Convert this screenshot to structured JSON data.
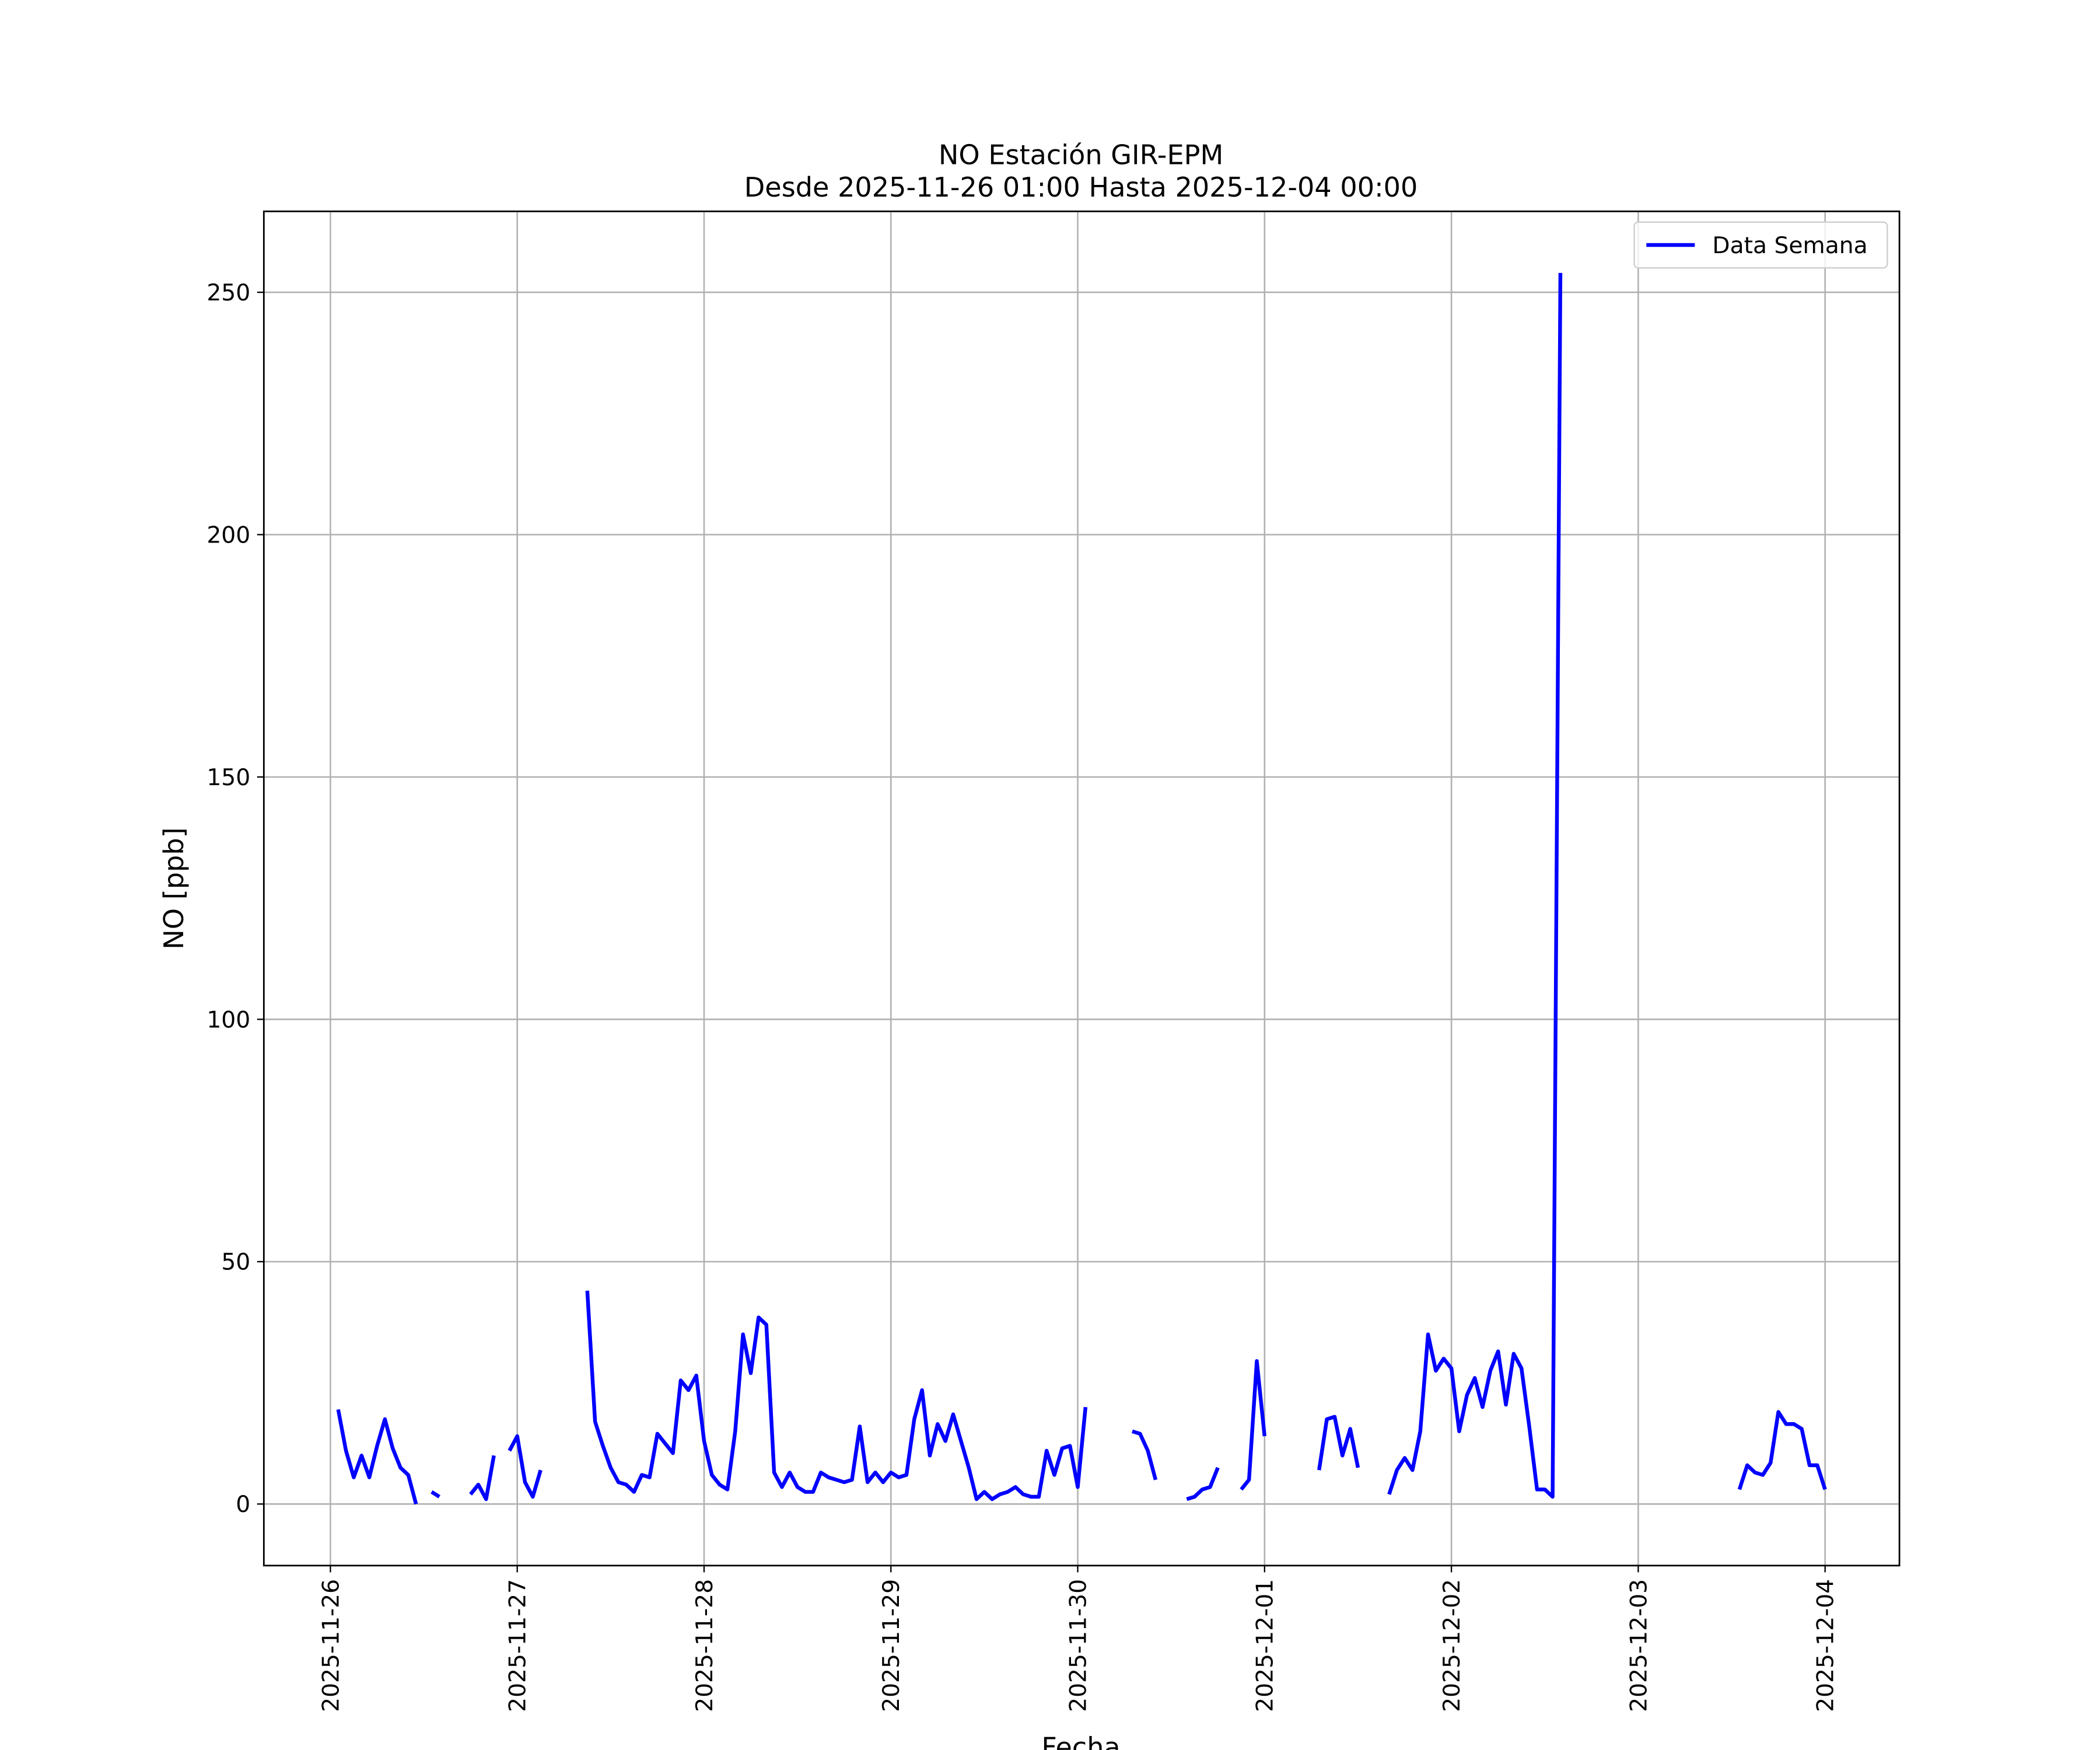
{
  "chart_data": {
    "type": "line",
    "title": "NO Estación GIR-EPM",
    "subtitle": "Desde 2025-11-26 01:00 Hasta 2025-12-04 00:00",
    "x_label": "Fecha",
    "y_label": "NO [ppb]",
    "x": [
      "2025-11-26 01:00",
      "2025-11-26 02:00",
      "2025-11-26 03:00",
      "2025-11-26 04:00",
      "2025-11-26 05:00",
      "2025-11-26 06:00",
      "2025-11-26 07:00",
      "2025-11-26 08:00",
      "2025-11-26 09:00",
      "2025-11-26 10:00",
      "2025-11-26 11:00",
      "2025-11-26 12:00",
      "2025-11-26 13:00",
      "2025-11-26 14:00",
      "2025-11-26 15:00",
      "2025-11-26 16:00",
      "2025-11-26 17:00",
      "2025-11-26 18:00",
      "2025-11-26 19:00",
      "2025-11-26 20:00",
      "2025-11-26 21:00",
      "2025-11-26 22:00",
      "2025-11-26 23:00",
      "2025-11-27 00:00",
      "2025-11-27 01:00",
      "2025-11-27 02:00",
      "2025-11-27 03:00",
      "2025-11-27 04:00",
      "2025-11-27 05:00",
      "2025-11-27 06:00",
      "2025-11-27 07:00",
      "2025-11-27 08:00",
      "2025-11-27 09:00",
      "2025-11-27 10:00",
      "2025-11-27 11:00",
      "2025-11-27 12:00",
      "2025-11-27 13:00",
      "2025-11-27 14:00",
      "2025-11-27 15:00",
      "2025-11-27 16:00",
      "2025-11-27 17:00",
      "2025-11-27 18:00",
      "2025-11-27 19:00",
      "2025-11-27 20:00",
      "2025-11-27 21:00",
      "2025-11-27 22:00",
      "2025-11-27 23:00",
      "2025-11-28 00:00",
      "2025-11-28 01:00",
      "2025-11-28 02:00",
      "2025-11-28 03:00",
      "2025-11-28 04:00",
      "2025-11-28 05:00",
      "2025-11-28 06:00",
      "2025-11-28 07:00",
      "2025-11-28 08:00",
      "2025-11-28 09:00",
      "2025-11-28 10:00",
      "2025-11-28 11:00",
      "2025-11-28 12:00",
      "2025-11-28 13:00",
      "2025-11-28 14:00",
      "2025-11-28 15:00",
      "2025-11-28 16:00",
      "2025-11-28 17:00",
      "2025-11-28 18:00",
      "2025-11-28 19:00",
      "2025-11-28 20:00",
      "2025-11-28 21:00",
      "2025-11-28 22:00",
      "2025-11-28 23:00",
      "2025-11-29 00:00",
      "2025-11-29 01:00",
      "2025-11-29 02:00",
      "2025-11-29 03:00",
      "2025-11-29 04:00",
      "2025-11-29 05:00",
      "2025-11-29 06:00",
      "2025-11-29 07:00",
      "2025-11-29 08:00",
      "2025-11-29 09:00",
      "2025-11-29 10:00",
      "2025-11-29 11:00",
      "2025-11-29 12:00",
      "2025-11-29 13:00",
      "2025-11-29 14:00",
      "2025-11-29 15:00",
      "2025-11-29 16:00",
      "2025-11-29 17:00",
      "2025-11-29 18:00",
      "2025-11-29 19:00",
      "2025-11-29 20:00",
      "2025-11-29 21:00",
      "2025-11-29 22:00",
      "2025-11-29 23:00",
      "2025-11-30 00:00",
      "2025-11-30 01:00",
      "2025-11-30 02:00",
      "2025-11-30 03:00",
      "2025-11-30 04:00",
      "2025-11-30 05:00",
      "2025-11-30 06:00",
      "2025-11-30 07:00",
      "2025-11-30 08:00",
      "2025-11-30 09:00",
      "2025-11-30 10:00",
      "2025-11-30 11:00",
      "2025-11-30 12:00",
      "2025-11-30 13:00",
      "2025-11-30 14:00",
      "2025-11-30 15:00",
      "2025-11-30 16:00",
      "2025-11-30 17:00",
      "2025-11-30 18:00",
      "2025-11-30 19:00",
      "2025-11-30 20:00",
      "2025-11-30 21:00",
      "2025-11-30 22:00",
      "2025-11-30 23:00",
      "2025-12-01 00:00",
      "2025-12-01 01:00",
      "2025-12-01 02:00",
      "2025-12-01 03:00",
      "2025-12-01 04:00",
      "2025-12-01 05:00",
      "2025-12-01 06:00",
      "2025-12-01 07:00",
      "2025-12-01 08:00",
      "2025-12-01 09:00",
      "2025-12-01 10:00",
      "2025-12-01 11:00",
      "2025-12-01 12:00",
      "2025-12-01 13:00",
      "2025-12-01 14:00",
      "2025-12-01 15:00",
      "2025-12-01 16:00",
      "2025-12-01 17:00",
      "2025-12-01 18:00",
      "2025-12-01 19:00",
      "2025-12-01 20:00",
      "2025-12-01 21:00",
      "2025-12-01 22:00",
      "2025-12-01 23:00",
      "2025-12-02 00:00",
      "2025-12-02 01:00",
      "2025-12-02 02:00",
      "2025-12-02 03:00",
      "2025-12-02 04:00",
      "2025-12-02 05:00",
      "2025-12-02 06:00",
      "2025-12-02 07:00",
      "2025-12-02 08:00",
      "2025-12-02 09:00",
      "2025-12-02 10:00",
      "2025-12-02 11:00",
      "2025-12-02 12:00",
      "2025-12-02 13:00",
      "2025-12-02 14:00",
      "2025-12-02 15:00",
      "2025-12-02 16:00",
      "2025-12-02 17:00",
      "2025-12-02 18:00",
      "2025-12-02 19:00",
      "2025-12-02 20:00",
      "2025-12-02 21:00",
      "2025-12-02 22:00",
      "2025-12-02 23:00",
      "2025-12-03 00:00",
      "2025-12-03 01:00",
      "2025-12-03 02:00",
      "2025-12-03 03:00",
      "2025-12-03 04:00",
      "2025-12-03 05:00",
      "2025-12-03 06:00",
      "2025-12-03 07:00",
      "2025-12-03 08:00",
      "2025-12-03 09:00",
      "2025-12-03 10:00",
      "2025-12-03 11:00",
      "2025-12-03 12:00",
      "2025-12-03 13:00",
      "2025-12-03 14:00",
      "2025-12-03 15:00",
      "2025-12-03 16:00",
      "2025-12-03 17:00",
      "2025-12-03 18:00",
      "2025-12-03 19:00",
      "2025-12-03 20:00",
      "2025-12-03 21:00",
      "2025-12-03 22:00",
      "2025-12-03 23:00",
      "2025-12-04 00:00"
    ],
    "series": [
      {
        "name": "Data Semana",
        "color": "#0000ff",
        "values": [
          19.5,
          11,
          5.5,
          10,
          5.5,
          12,
          17.5,
          11.5,
          7.5,
          6,
          0,
          null,
          2.5,
          1.5,
          null,
          null,
          null,
          2,
          4,
          1,
          10,
          null,
          11,
          14,
          4.5,
          1.5,
          7,
          null,
          null,
          null,
          null,
          null,
          44,
          17,
          12,
          7.5,
          4.5,
          4,
          2.5,
          6,
          5.5,
          14.5,
          12.5,
          10.5,
          25.5,
          23.5,
          26.5,
          13,
          6,
          4,
          3,
          15,
          35,
          27,
          38.5,
          37,
          6.5,
          3.5,
          6.5,
          3.5,
          2.5,
          2.5,
          6.5,
          5.5,
          5,
          4.5,
          5,
          16,
          4.5,
          6.5,
          4.5,
          6.5,
          5.5,
          6,
          17.5,
          23.5,
          10,
          16.5,
          13,
          18.5,
          13,
          7.5,
          1,
          2.5,
          1,
          2,
          2.5,
          3.5,
          2,
          1.5,
          1.5,
          11,
          6,
          11.5,
          12,
          3.5,
          20,
          null,
          null,
          null,
          null,
          null,
          15,
          14.5,
          11,
          5,
          null,
          null,
          null,
          1,
          1.5,
          3,
          3.5,
          7.5,
          null,
          null,
          3,
          5,
          29.5,
          14,
          null,
          null,
          null,
          null,
          null,
          null,
          7,
          17.5,
          18,
          10,
          15.5,
          7.5,
          null,
          null,
          null,
          2,
          7,
          9.5,
          7,
          15,
          35,
          27.5,
          30,
          28,
          15,
          22.5,
          26,
          20,
          27.5,
          31.5,
          20.5,
          31,
          28,
          16,
          3,
          3,
          1.5,
          254,
          null,
          null,
          null,
          null,
          null,
          null,
          null,
          null,
          null,
          null,
          null,
          null,
          null,
          null,
          null,
          null,
          null,
          null,
          null,
          null,
          null,
          null,
          3,
          8,
          6.5,
          6,
          8.5,
          19,
          16.5,
          16.5,
          15.5,
          8,
          8,
          3
        ]
      }
    ],
    "xlim": [
      "2025-11-25 15:27",
      "2025-12-04 09:33"
    ],
    "xticks": [
      "2025-11-26",
      "2025-11-27",
      "2025-11-28",
      "2025-11-29",
      "2025-11-30",
      "2025-12-01",
      "2025-12-02",
      "2025-12-03",
      "2025-12-04"
    ],
    "ylim": [
      -12.7,
      266.7
    ],
    "yticks": [
      0,
      50,
      100,
      150,
      200,
      250
    ],
    "grid": true,
    "legend": "upper right"
  }
}
